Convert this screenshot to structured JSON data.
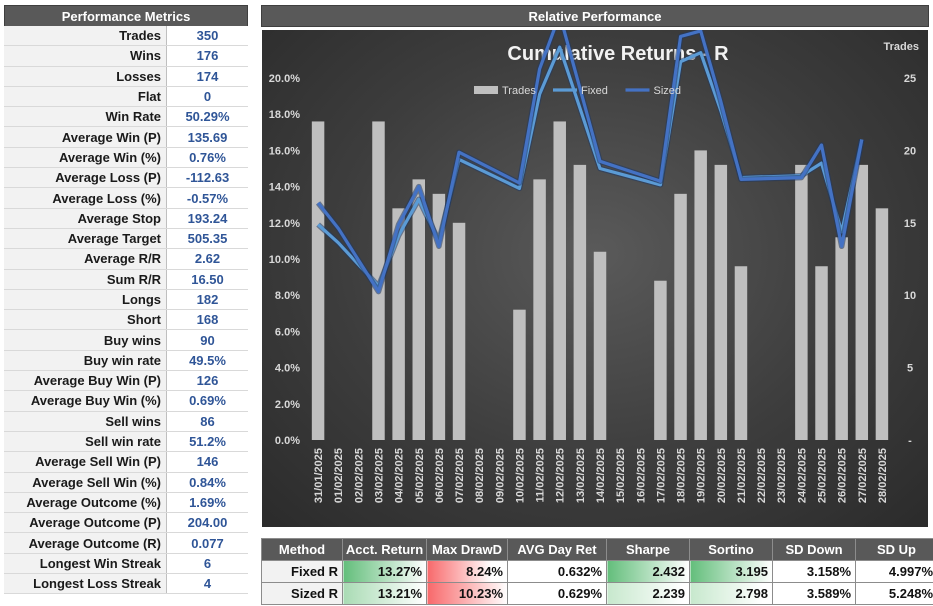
{
  "metrics_panel": {
    "title": "Performance Metrics",
    "rows": [
      {
        "label": "Trades",
        "value": "350"
      },
      {
        "label": "Wins",
        "value": "176"
      },
      {
        "label": "Losses",
        "value": "174"
      },
      {
        "label": "Flat",
        "value": "0"
      },
      {
        "label": "Win Rate",
        "value": "50.29%"
      },
      {
        "label": "Average Win (P)",
        "value": "135.69"
      },
      {
        "label": "Average Win (%)",
        "value": "0.76%"
      },
      {
        "label": "Average Loss (P)",
        "value": "-112.63"
      },
      {
        "label": "Average Loss (%)",
        "value": "-0.57%"
      },
      {
        "label": "Average Stop",
        "value": "193.24"
      },
      {
        "label": "Average Target",
        "value": "505.35"
      },
      {
        "label": "Average R/R",
        "value": "2.62"
      },
      {
        "label": "Sum R/R",
        "value": "16.50"
      },
      {
        "label": "Longs",
        "value": "182"
      },
      {
        "label": "Short",
        "value": "168"
      },
      {
        "label": "Buy wins",
        "value": "90"
      },
      {
        "label": "Buy win rate",
        "value": "49.5%"
      },
      {
        "label": "Average Buy Win (P)",
        "value": "126"
      },
      {
        "label": "Average Buy Win (%)",
        "value": "0.69%"
      },
      {
        "label": "Sell wins",
        "value": "86"
      },
      {
        "label": "Sell win rate",
        "value": "51.2%"
      },
      {
        "label": "Average Sell Win (P)",
        "value": "146"
      },
      {
        "label": "Average Sell Win (%)",
        "value": "0.84%"
      },
      {
        "label": "Average Outcome (%)",
        "value": "1.69%"
      },
      {
        "label": "Average Outcome (P)",
        "value": "204.00"
      },
      {
        "label": "Average Outcome (R)",
        "value": "0.077"
      },
      {
        "label": "Longest Win Streak",
        "value": "6"
      },
      {
        "label": "Longest Loss Streak",
        "value": "4"
      }
    ]
  },
  "relative_panel": {
    "title": "Relative Performance"
  },
  "chart_data": {
    "type": "bar",
    "title": "Cumulative Returns - R",
    "y2_title": "Trades",
    "categories": [
      "31/01/2025",
      "01/02/2025",
      "02/02/2025",
      "03/02/2025",
      "04/02/2025",
      "05/02/2025",
      "06/02/2025",
      "07/02/2025",
      "08/02/2025",
      "09/02/2025",
      "10/02/2025",
      "11/02/2025",
      "12/02/2025",
      "13/02/2025",
      "14/02/2025",
      "15/02/2025",
      "16/02/2025",
      "17/02/2025",
      "18/02/2025",
      "19/02/2025",
      "20/02/2025",
      "21/02/2025",
      "22/02/2025",
      "23/02/2025",
      "24/02/2025",
      "25/02/2025",
      "26/02/2025",
      "27/02/2025",
      "28/02/2025"
    ],
    "series": [
      {
        "name": "Trades",
        "axis": "right",
        "type": "bar",
        "color": "#bfbfbf",
        "values": [
          22,
          0,
          0,
          22,
          16,
          18,
          17,
          15,
          0,
          0,
          9,
          18,
          22,
          19,
          13,
          0,
          0,
          11,
          17,
          20,
          19,
          12,
          0,
          0,
          19,
          12,
          14,
          19,
          16
        ]
      },
      {
        "name": "Fixed",
        "axis": "left",
        "type": "line",
        "color": "#5b9bd5",
        "values": [
          11.9,
          10.9,
          null,
          8.5,
          11.3,
          13.3,
          11.0,
          15.5,
          null,
          null,
          13.9,
          19.1,
          21.7,
          null,
          15.0,
          null,
          null,
          14.1,
          20.9,
          21.4,
          18.2,
          14.5,
          null,
          null,
          14.6,
          15.3,
          11.5,
          16.6,
          null
        ]
      },
      {
        "name": "Sized",
        "axis": "left",
        "type": "line",
        "color": "#4472c4",
        "values": [
          13.1,
          11.7,
          null,
          8.2,
          11.9,
          14.0,
          10.7,
          15.9,
          null,
          null,
          14.2,
          20.5,
          23.5,
          null,
          15.4,
          null,
          null,
          14.3,
          22.3,
          22.6,
          18.7,
          14.4,
          null,
          null,
          14.5,
          16.3,
          10.7,
          16.6,
          null
        ]
      }
    ],
    "ylim": [
      0,
      20
    ],
    "y_ticks": [
      "0.0%",
      "2.0%",
      "4.0%",
      "6.0%",
      "8.0%",
      "10.0%",
      "12.0%",
      "14.0%",
      "16.0%",
      "18.0%",
      "20.0%"
    ],
    "y2lim": [
      0,
      25
    ],
    "y2_ticks": [
      "-",
      "5",
      "10",
      "15",
      "20",
      "25"
    ],
    "legend": "top-center",
    "grid": false
  },
  "stats_table": {
    "headers": [
      "Method",
      "Acct. Return",
      "Max DrawD",
      "AVG Day Ret",
      "Sharpe",
      "Sortino",
      "SD Down",
      "SD Up"
    ],
    "rows": [
      [
        "Fixed R",
        "13.27%",
        "8.24%",
        "0.632%",
        "2.432",
        "3.195",
        "3.158%",
        "4.997%"
      ],
      [
        "Sized R",
        "13.21%",
        "10.23%",
        "0.629%",
        "2.239",
        "2.798",
        "3.589%",
        "5.248%"
      ]
    ],
    "cell_fills": [
      [
        "#ffffff",
        "#63be7b",
        "#f8696b",
        "#ffffff",
        "#63be7b",
        "#63be7b",
        "#ffffff",
        "#ffffff"
      ],
      [
        "#ffffff",
        "#a9dbb4",
        "#f8696b",
        "#ffffff",
        "#c7e8cd",
        "#c7e8cd",
        "#ffffff",
        "#ffffff"
      ]
    ],
    "cell_fill_levels": [
      [
        0,
        1.0,
        0.8,
        0,
        1.0,
        1.0,
        0,
        0
      ],
      [
        0,
        0.99,
        1.0,
        0,
        0.92,
        0.88,
        0,
        0
      ]
    ]
  }
}
